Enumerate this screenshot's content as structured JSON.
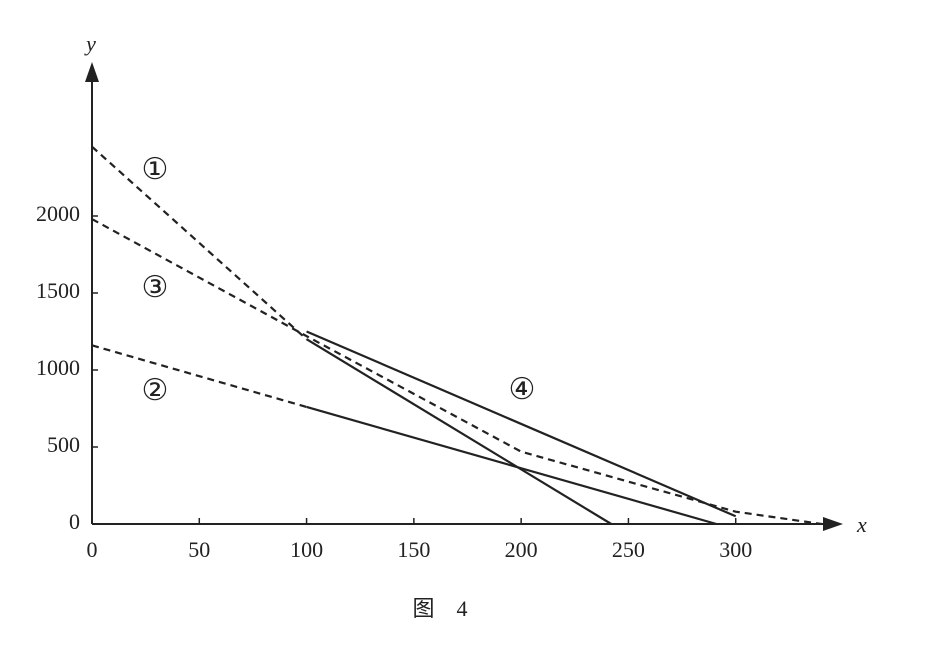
{
  "chart_data": {
    "type": "line",
    "title": "图　4",
    "x_label": "x",
    "y_label": "y",
    "xlim": [
      0,
      350
    ],
    "ylim": [
      0,
      3000
    ],
    "xticks": [
      0,
      50,
      100,
      150,
      200,
      250,
      300
    ],
    "yticks": [
      0,
      500,
      1000,
      1500,
      2000
    ],
    "color": "#222222",
    "series": [
      {
        "name": "①",
        "pieces": [
          {
            "style": "dashed",
            "x": [
              0,
              100
            ],
            "values": [
              2450,
              1200
            ]
          },
          {
            "style": "solid",
            "x": [
              100,
              242
            ],
            "values": [
              1200,
              0
            ]
          }
        ]
      },
      {
        "name": "②",
        "pieces": [
          {
            "style": "dashed",
            "x": [
              0,
              100
            ],
            "values": [
              1160,
              760
            ]
          },
          {
            "style": "solid",
            "x": [
              100,
              291
            ],
            "values": [
              760,
              0
            ]
          }
        ]
      },
      {
        "name": "③",
        "pieces": [
          {
            "style": "dashed",
            "x": [
              0,
              100,
              200,
              300,
              340
            ],
            "values": [
              1980,
              1220,
              470,
              80,
              0
            ]
          }
        ]
      },
      {
        "name": "④",
        "pieces": [
          {
            "style": "solid",
            "x": [
              100,
              300
            ],
            "values": [
              1250,
              50
            ]
          }
        ]
      }
    ]
  }
}
